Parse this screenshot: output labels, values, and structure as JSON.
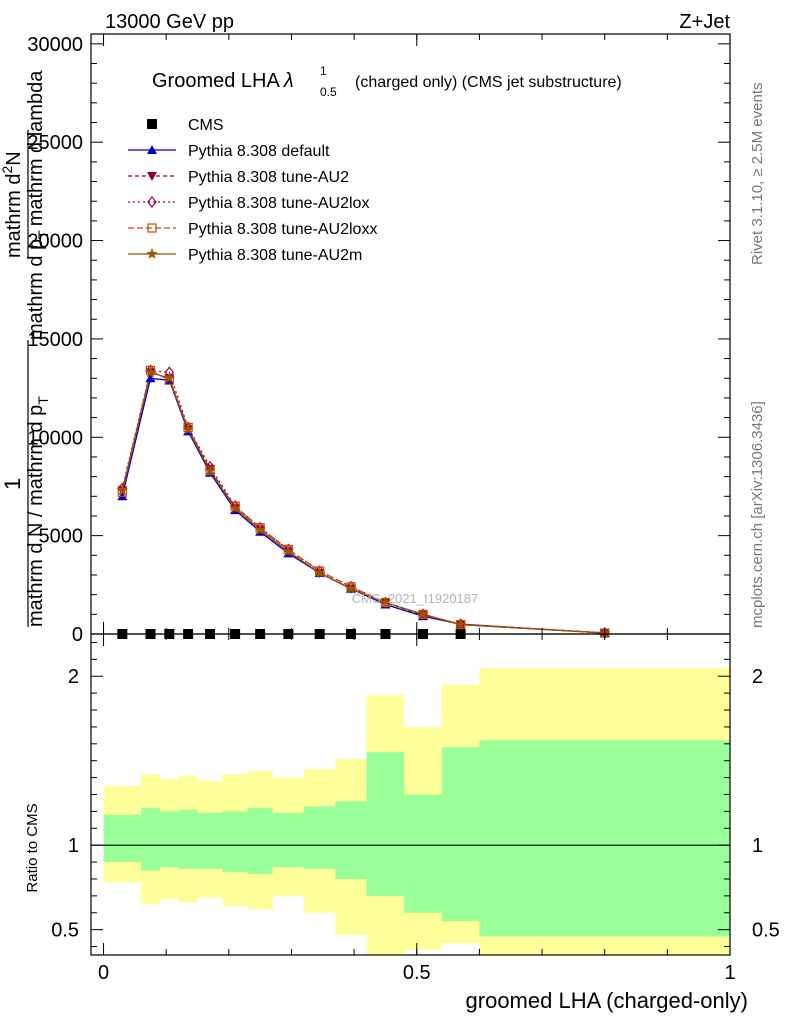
{
  "header": {
    "left": "13000 GeV pp",
    "right": "Z+Jet"
  },
  "side_text": {
    "version": "Rivet 3.1.10, ≥ 2.5M events",
    "site": "mcplots.cern.ch [arXiv:1306.3436]"
  },
  "watermark": "CMS_2021_I1920187",
  "chart_data": [
    {
      "type": "line",
      "title": "Groomed LHA",
      "title_symbol": "λ",
      "title_sup": "1",
      "title_sub": "0.5",
      "subtitle": "(charged only) (CMS jet substructure)",
      "xlabel": "groomed LHA (charged-only)",
      "ylabel_segments": [
        "1",
        "mathrm d N / mathrm d p",
        "T",
        "mathrm d p",
        "T",
        "mathrm d lambda",
        "mathrm d",
        "2",
        "N"
      ],
      "ylabel_text": {
        "one": "1",
        "den": "mathrm d N / mathrm d p",
        "den_sub": "T",
        "num_top": "mathrm d",
        "num_sup": "2",
        "num_top_n": "N",
        "num_bottom": "mathrm d p",
        "num_bottom_sub": "T",
        "num_bottom_rest": "mathrm d lambda"
      },
      "xlim": [
        -0.02,
        1.0
      ],
      "ylim": [
        0,
        30500
      ],
      "x_ticks": [
        0,
        0.5,
        1
      ],
      "x_tick_labels": [
        "0",
        "0.5",
        "1"
      ],
      "y_ticks": [
        0,
        5000,
        10000,
        15000,
        20000,
        25000,
        30000
      ],
      "y_tick_labels": [
        "0",
        "5000",
        "10000",
        "15000",
        "20000",
        "25000",
        "30000"
      ],
      "x": [
        0.03,
        0.075,
        0.105,
        0.135,
        0.17,
        0.21,
        0.25,
        0.295,
        0.345,
        0.395,
        0.45,
        0.51,
        0.57,
        0.8
      ],
      "series": [
        {
          "name": "CMS",
          "color": "#000000",
          "marker": "square",
          "values": [
            0,
            0,
            0,
            0,
            0,
            0,
            0,
            0,
            0,
            0,
            0,
            0,
            0,
            0
          ]
        },
        {
          "name": "Pythia 8.308 default",
          "color": "#0000cc",
          "marker": "triangle-up",
          "dash": "",
          "values": [
            7000,
            13000,
            12900,
            10300,
            8200,
            6300,
            5200,
            4100,
            3100,
            2300,
            1500,
            900,
            500,
            50
          ]
        },
        {
          "name": "Pythia 8.308 tune-AU2",
          "color": "#880033",
          "marker": "triangle-down",
          "dash": "4,3",
          "values": [
            7300,
            13300,
            13000,
            10400,
            8400,
            6400,
            5300,
            4200,
            3100,
            2300,
            1600,
            950,
            480,
            50
          ]
        },
        {
          "name": "Pythia 8.308 tune-AU2lox",
          "color": "#aa0033",
          "marker": "diamond",
          "dash": "2,3",
          "values": [
            7400,
            13400,
            13300,
            10500,
            8500,
            6500,
            5400,
            4300,
            3200,
            2400,
            1600,
            1000,
            500,
            50
          ]
        },
        {
          "name": "Pythia 8.308 tune-AU2loxx",
          "color": "#cc4400",
          "marker": "square-open",
          "dash": "6,3",
          "values": [
            7200,
            13400,
            12900,
            10500,
            8300,
            6500,
            5400,
            4300,
            3200,
            2400,
            1600,
            1000,
            480,
            50
          ]
        },
        {
          "name": "Pythia 8.308 tune-AU2m",
          "color": "#995500",
          "marker": "star",
          "dash": "",
          "values": [
            7300,
            13300,
            13000,
            10400,
            8300,
            6400,
            5300,
            4200,
            3100,
            2300,
            1600,
            1000,
            480,
            50
          ]
        }
      ],
      "cms_x": [
        0.03,
        0.075,
        0.105,
        0.135,
        0.17,
        0.21,
        0.25,
        0.295,
        0.345,
        0.395,
        0.45,
        0.51,
        0.57
      ]
    },
    {
      "type": "area",
      "ylabel": "Ratio to CMS",
      "xlim": [
        -0.02,
        1.0
      ],
      "ylim": [
        0.35,
        2.25
      ],
      "y_ticks": [
        0.5,
        1,
        2
      ],
      "y_tick_labels": [
        "0.5",
        "1",
        "2"
      ],
      "reference_line": 1,
      "bins": [
        0.0,
        0.06,
        0.09,
        0.12,
        0.15,
        0.19,
        0.23,
        0.27,
        0.32,
        0.37,
        0.42,
        0.48,
        0.54,
        0.6,
        1.0
      ],
      "inner_band": {
        "color": "#99ff99",
        "upper": [
          1.18,
          1.22,
          1.2,
          1.21,
          1.19,
          1.2,
          1.22,
          1.19,
          1.23,
          1.26,
          1.55,
          1.3,
          1.58,
          1.62
        ],
        "lower": [
          0.9,
          0.85,
          0.87,
          0.86,
          0.86,
          0.84,
          0.83,
          0.87,
          0.86,
          0.8,
          0.7,
          0.6,
          0.55,
          0.46
        ]
      },
      "outer_band": {
        "color": "#ffff99",
        "upper": [
          1.35,
          1.42,
          1.39,
          1.41,
          1.38,
          1.42,
          1.44,
          1.4,
          1.45,
          1.51,
          1.89,
          1.7,
          1.95,
          2.05
        ],
        "lower": [
          0.78,
          0.65,
          0.68,
          0.66,
          0.69,
          0.64,
          0.62,
          0.7,
          0.6,
          0.47,
          0.25,
          0.38,
          0.42,
          0.3
        ]
      }
    }
  ]
}
